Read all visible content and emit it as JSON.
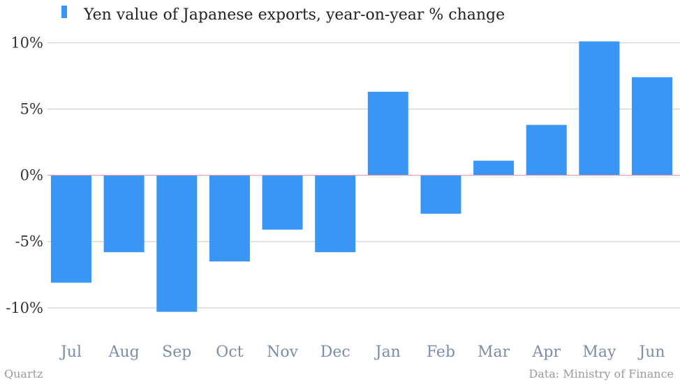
{
  "chart_data": {
    "type": "bar",
    "title": "",
    "xlabel": "",
    "ylabel": "",
    "categories": [
      "Jul",
      "Aug",
      "Sep",
      "Oct",
      "Nov",
      "Dec",
      "Jan",
      "Feb",
      "Mar",
      "Apr",
      "May",
      "Jun"
    ],
    "series": [
      {
        "name": "Yen value of Japanese exports, year-on-year % change",
        "color": "#3a96f5",
        "values": [
          -8.1,
          -5.8,
          -10.3,
          -6.5,
          -4.1,
          -5.8,
          6.3,
          -2.9,
          1.1,
          3.8,
          10.1,
          7.4
        ]
      }
    ],
    "ylim": [
      -11.9,
      10.7
    ],
    "yticks": [
      10,
      5,
      0,
      -5,
      -10
    ],
    "ytick_labels": [
      "10%",
      "5%",
      "0%",
      "-5%",
      "-10%"
    ],
    "grid": true,
    "zero_line_color": "#e39bb0",
    "legend_position": "top-left"
  },
  "footer": {
    "source_left": "Quartz",
    "source_right": "Data: Ministry of Finance"
  }
}
